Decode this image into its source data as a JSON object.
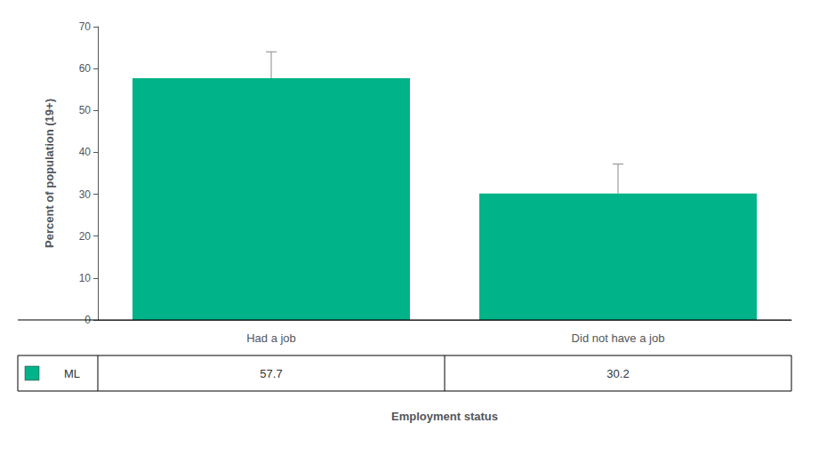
{
  "chart_data": {
    "type": "bar",
    "categories": [
      "Had a job",
      "Did not have a job"
    ],
    "series": [
      {
        "name": "ML",
        "color": "#00B388",
        "values": [
          57.7,
          30.2
        ],
        "errors_upper": [
          6.3,
          7.0
        ]
      }
    ],
    "ylabel": "Percent of population (19+)",
    "xlabel": "Employment status",
    "ylim": [
      0,
      70
    ],
    "yticks": [
      0,
      10,
      20,
      30,
      40,
      50,
      60,
      70
    ],
    "grid": false
  }
}
